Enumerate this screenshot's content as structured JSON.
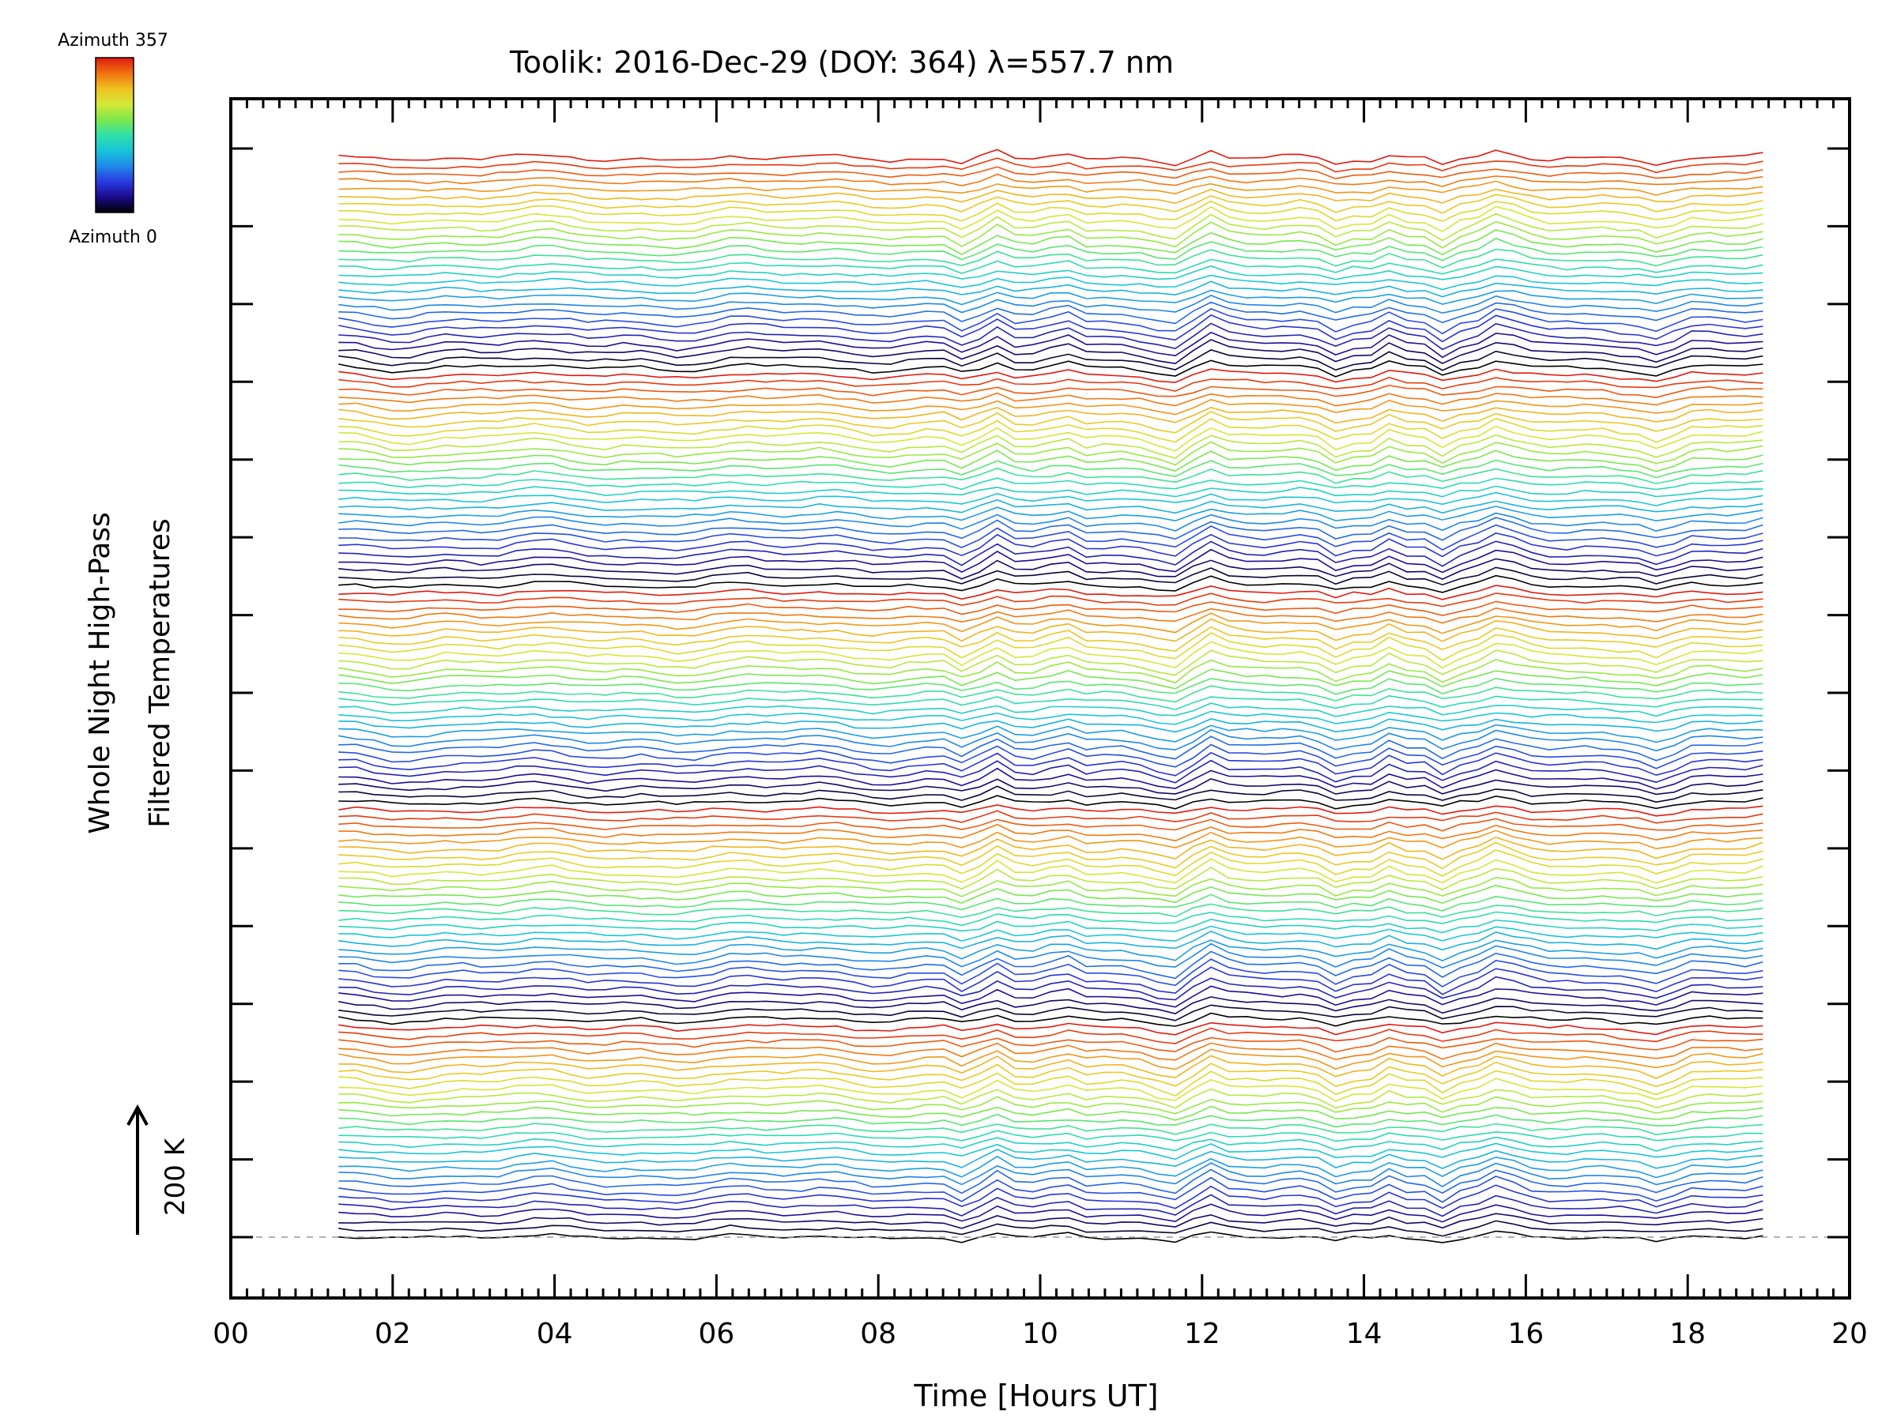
{
  "chart_data": {
    "type": "line",
    "title": "Toolik: 2016-Dec-29 (DOY: 364) λ=557.7 nm",
    "xlabel": "Time [Hours UT]",
    "ylabel_line1": "Whole Night High-Pass",
    "ylabel_line2": "Filtered Temperatures",
    "scale_label": "200 K",
    "scale_kelvin": 200,
    "xlim": [
      0,
      20
    ],
    "x_tick_labels": [
      "00",
      "02",
      "04",
      "06",
      "08",
      "10",
      "12",
      "14",
      "16",
      "18",
      "20"
    ],
    "x_minor_step": 0.2,
    "y_major_tick_count": 15,
    "data_start_hour": 1.33,
    "data_end_hour": 19.1,
    "num_traces": 140,
    "trace_offset_kelvin": 20,
    "colorbar": {
      "top_label": "Azimuth  357",
      "bottom_label": "Azimuth  0",
      "azimuth_min": 0,
      "azimuth_max": 357
    },
    "colormap": [
      "#000000",
      "#1a0a8c",
      "#2a3be0",
      "#1f8ae8",
      "#18c4d8",
      "#30e0a8",
      "#7ee84a",
      "#d4e838",
      "#f0c020",
      "#f07010",
      "#e01a10"
    ],
    "event_hours": [
      9.1,
      9.4,
      9.8,
      10.3,
      11.6,
      12.1,
      13.6,
      14.3,
      15.0,
      15.7,
      17.7,
      19.1
    ],
    "reference_line": "dashed-baseline"
  }
}
